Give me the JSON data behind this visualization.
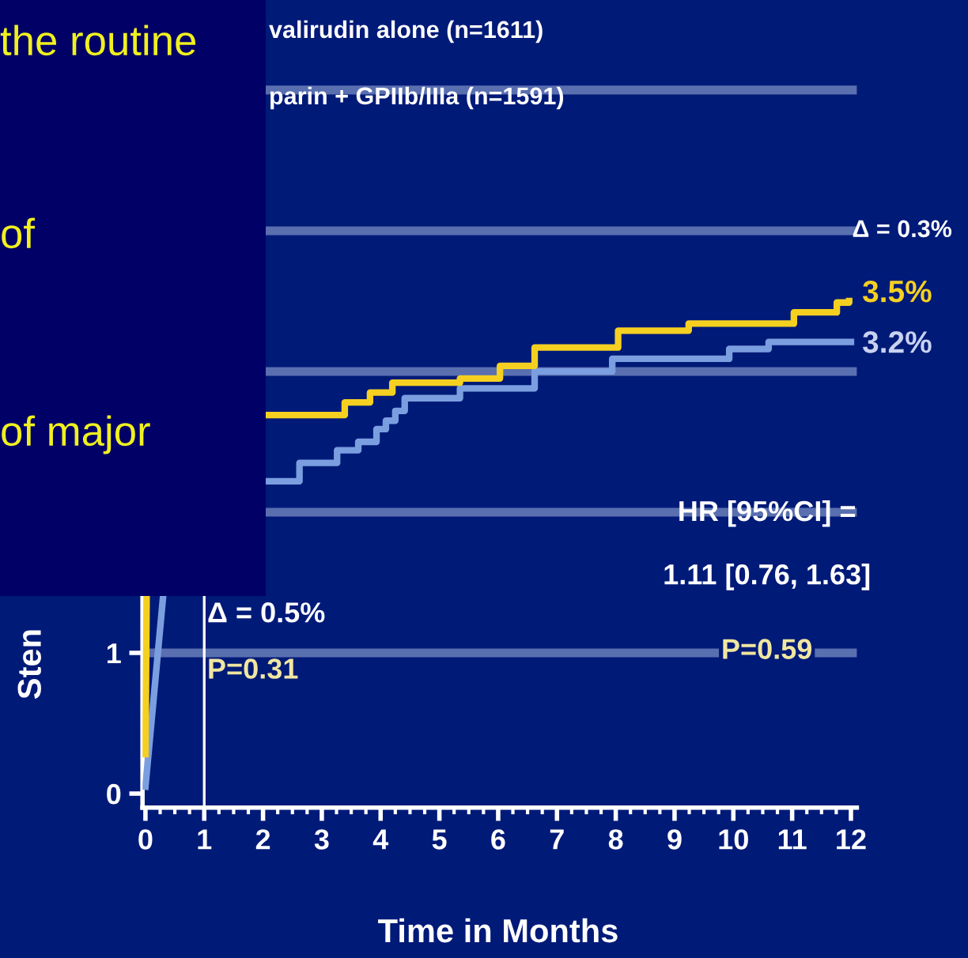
{
  "chart_data": {
    "type": "step",
    "xlabel": "Time in Months",
    "ylabel": "Sten",
    "xlim": [
      -0.05,
      12.1
    ],
    "xticks": [
      0,
      1,
      2,
      3,
      4,
      5,
      6,
      7,
      8,
      9,
      10,
      11,
      12
    ],
    "ylim": [
      -0.1,
      5.64
    ],
    "yticks": [
      0,
      1
    ],
    "grid": false,
    "legend": false,
    "ref_lines": [
      {
        "axis": "y",
        "value": 1,
        "color": "#5a6fb0"
      },
      {
        "axis": "y",
        "value": 2,
        "color": "#5a6fb0"
      },
      {
        "axis": "y",
        "value": 3,
        "color": "#5a6fb0"
      },
      {
        "axis": "y",
        "value": 4,
        "color": "#5a6fb0"
      },
      {
        "axis": "y",
        "value": 5,
        "color": "#5a6fb0"
      },
      {
        "axis": "x",
        "value": 1,
        "color": "#ffffff"
      }
    ],
    "series": [
      {
        "type": "line",
        "color": "#7b9ee0",
        "x": [
          0,
          0.3
        ],
        "values": [
          0.05,
          1.4
        ]
      },
      {
        "type": "line",
        "color": "#f5d020",
        "x": [
          0,
          0.02
        ],
        "values": [
          0.28,
          1.4
        ]
      },
      {
        "color": "#7b9ee0",
        "x": [
          2.1,
          2.62,
          3.26,
          3.62,
          3.93,
          4.09,
          4.25,
          4.41,
          5.35,
          6.62,
          7.94,
          9.93,
          10.6,
          12.0
        ],
        "values": [
          2.22,
          2.35,
          2.44,
          2.5,
          2.59,
          2.65,
          2.72,
          2.81,
          2.88,
          3.0,
          3.09,
          3.16,
          3.21,
          3.21
        ]
      },
      {
        "color": "#f5d020",
        "x": [
          2.1,
          3.39,
          3.82,
          4.2,
          5.35,
          6.03,
          6.62,
          8.04,
          9.24,
          11.03,
          11.76,
          11.97
        ],
        "values": [
          2.69,
          2.78,
          2.85,
          2.92,
          2.95,
          3.04,
          3.17,
          3.29,
          3.34,
          3.42,
          3.49,
          3.5
        ]
      }
    ],
    "annotations": [
      "valirudin alone (n=1611)",
      "parin + GPIIb/IIIa (n=1591)",
      "Δ = 0.3%",
      {
        "text": "3.5%",
        "x": 12.0,
        "y": 3.5
      },
      {
        "text": "3.2%",
        "x": 12.0,
        "y": 3.21
      },
      "HR [95%CI] =",
      "1.11 [0.76, 1.63]",
      "P=0.59",
      "Δ = 0.5%",
      "P=0.31",
      "the routine",
      "of",
      "of major"
    ]
  }
}
